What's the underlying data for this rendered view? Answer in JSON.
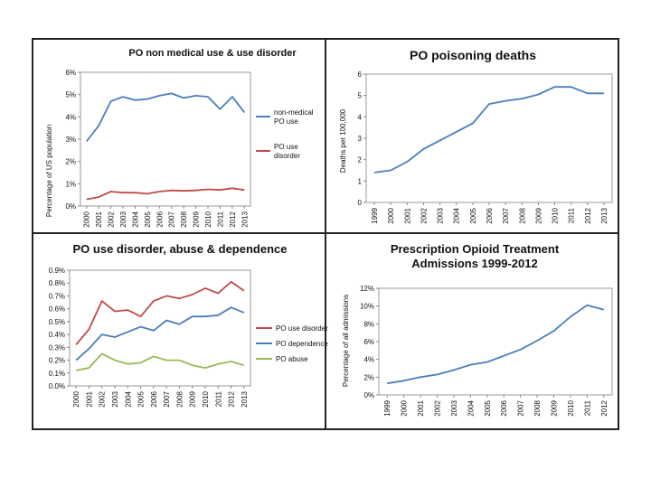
{
  "chart_data": [
    {
      "type": "line",
      "title": "PO non medical use & use disorder",
      "xlabel": "",
      "ylabel": "Percentage of US population",
      "x": [
        "2000",
        "2001",
        "2002",
        "2003",
        "2004",
        "2005",
        "2006",
        "2007",
        "2008",
        "2009",
        "2010",
        "2011",
        "2012",
        "2013"
      ],
      "y_ticks": [
        "0%",
        "1%",
        "2%",
        "3%",
        "4%",
        "5%",
        "6%"
      ],
      "ylim": [
        0,
        6
      ],
      "series": [
        {
          "name": "non-medical PO use",
          "color": "#4a7ebb",
          "values": [
            2.9,
            3.6,
            4.7,
            4.9,
            4.75,
            4.8,
            4.95,
            5.05,
            4.85,
            4.95,
            4.9,
            4.35,
            4.9,
            4.2
          ]
        },
        {
          "name": "PO use disorder",
          "color": "#be4b48",
          "values": [
            0.3,
            0.4,
            0.65,
            0.6,
            0.6,
            0.55,
            0.65,
            0.7,
            0.68,
            0.7,
            0.75,
            0.72,
            0.8,
            0.72
          ]
        }
      ]
    },
    {
      "type": "line",
      "title": "PO poisoning deaths",
      "xlabel": "",
      "ylabel": "Deaths per 100,000",
      "x": [
        "1999",
        "2000",
        "2001",
        "2002",
        "2003",
        "2004",
        "2005",
        "2006",
        "2007",
        "2008",
        "2009",
        "2010",
        "2011",
        "2012",
        "2013"
      ],
      "y_ticks": [
        "0",
        "1",
        "2",
        "3",
        "4",
        "5",
        "6"
      ],
      "ylim": [
        0,
        6
      ],
      "series": [
        {
          "name": "PO poisoning deaths",
          "color": "#4a7ebb",
          "values": [
            1.4,
            1.5,
            1.9,
            2.5,
            2.9,
            3.3,
            3.7,
            4.6,
            4.75,
            4.85,
            5.05,
            5.4,
            5.4,
            5.1,
            5.1
          ]
        }
      ]
    },
    {
      "type": "line",
      "title": "PO use disorder, abuse & dependence",
      "xlabel": "",
      "ylabel": "",
      "x": [
        "2000",
        "2001",
        "2002",
        "2003",
        "2004",
        "2005",
        "2006",
        "2007",
        "2008",
        "2009",
        "2010",
        "2011",
        "2012",
        "2013"
      ],
      "y_ticks": [
        "0.0%",
        "0.1%",
        "0.2%",
        "0.3%",
        "0.4%",
        "0.5%",
        "0.6%",
        "0.7%",
        "0.8%",
        "0.9%"
      ],
      "ylim": [
        0,
        0.9
      ],
      "series": [
        {
          "name": "PO use disorder",
          "color": "#be4b48",
          "values": [
            0.32,
            0.44,
            0.66,
            0.58,
            0.59,
            0.54,
            0.66,
            0.7,
            0.68,
            0.71,
            0.76,
            0.72,
            0.81,
            0.74
          ]
        },
        {
          "name": "PO dependence",
          "color": "#4a7ebb",
          "values": [
            0.2,
            0.29,
            0.4,
            0.38,
            0.42,
            0.46,
            0.43,
            0.51,
            0.48,
            0.54,
            0.54,
            0.55,
            0.61,
            0.57
          ]
        },
        {
          "name": "PO abuse",
          "color": "#98b954",
          "values": [
            0.12,
            0.14,
            0.25,
            0.2,
            0.17,
            0.18,
            0.23,
            0.2,
            0.2,
            0.16,
            0.14,
            0.17,
            0.19,
            0.16
          ]
        }
      ]
    },
    {
      "type": "line",
      "title": "Prescription Opioid Treatment Admissions 1999-2012",
      "title_lines": [
        "Prescription Opioid Treatment",
        "Admissions 1999-2012"
      ],
      "xlabel": "",
      "ylabel": "Percentage of all admissions",
      "x": [
        "1999",
        "2000",
        "2001",
        "2002",
        "2003",
        "2004",
        "2005",
        "2006",
        "2007",
        "2008",
        "2009",
        "2010",
        "2011",
        "2012"
      ],
      "y_ticks": [
        "0%",
        "2%",
        "4%",
        "6%",
        "8%",
        "10%",
        "12%"
      ],
      "ylim": [
        0,
        12
      ],
      "series": [
        {
          "name": "Prescription opioid treatment admissions",
          "color": "#4a7ebb",
          "values": [
            1.3,
            1.6,
            2.0,
            2.3,
            2.8,
            3.4,
            3.7,
            4.4,
            5.1,
            6.1,
            7.2,
            8.8,
            10.1,
            9.6
          ]
        }
      ]
    }
  ]
}
